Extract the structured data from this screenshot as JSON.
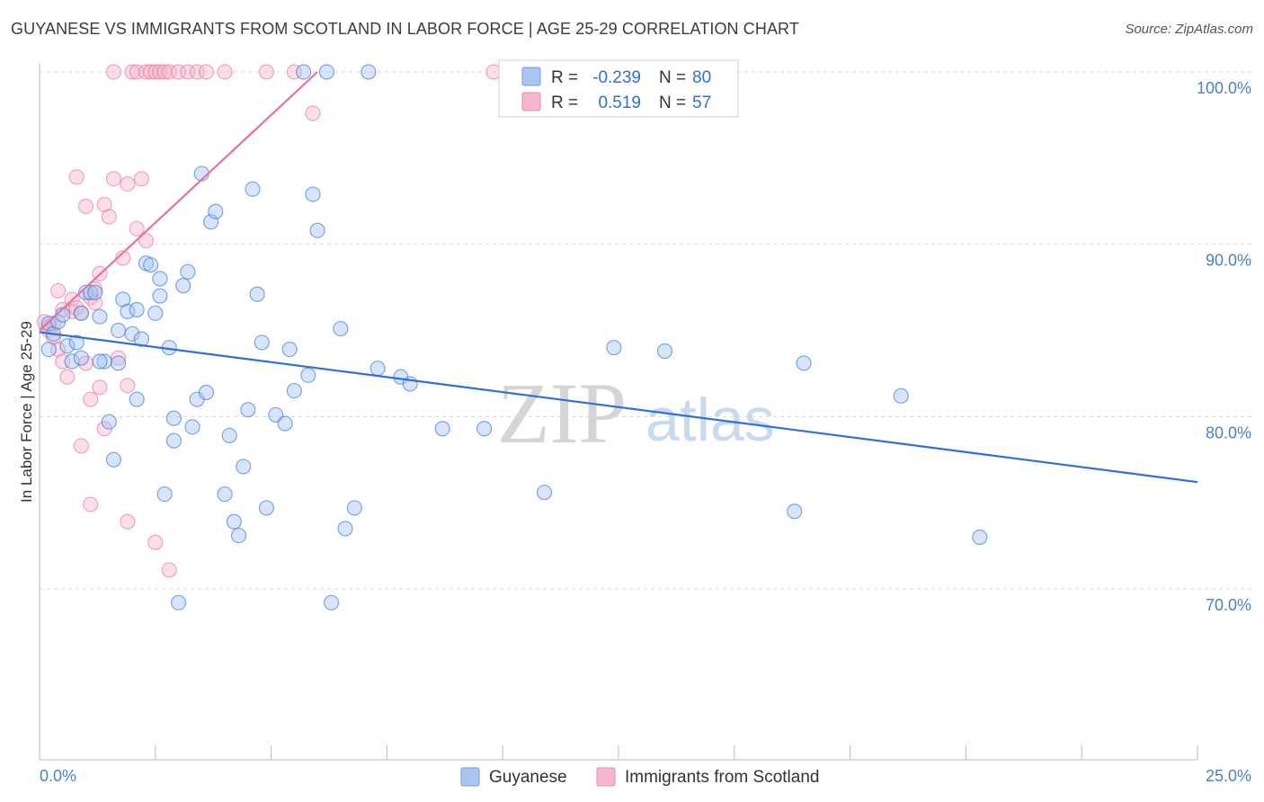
{
  "title": "GUYANESE VS IMMIGRANTS FROM SCOTLAND IN LABOR FORCE | AGE 25-29 CORRELATION CHART",
  "source": "Source: ZipAtlas.com",
  "watermark": {
    "zip": "ZIP",
    "atlas": "atlas"
  },
  "colors": {
    "blue": "#2f6fd6",
    "blue_fill": "#a9c6f0",
    "pink": "#e8729a",
    "pink_fill": "#f5b6cb",
    "grid": "#d9d9d9"
  },
  "stats": {
    "r_label": "R =",
    "n_label": "N =",
    "guyanese": {
      "r": "-0.239",
      "n": "80"
    },
    "scotland": {
      "r": "0.519",
      "n": "57"
    }
  },
  "chart_data": {
    "type": "scatter",
    "title": "GUYANESE VS IMMIGRANTS FROM SCOTLAND IN LABOR FORCE | AGE 25-29 CORRELATION CHART",
    "xlabel": "",
    "ylabel": "In Labor Force | Age 25-29",
    "xlim": [
      0,
      25
    ],
    "ylim": [
      60,
      100
    ],
    "x_tick_labels": [
      "0.0%",
      "25.0%"
    ],
    "y_ticks": [
      70,
      80,
      90,
      100
    ],
    "y_tick_labels": [
      "70.0%",
      "80.0%",
      "90.0%",
      "100.0%"
    ],
    "grid": true,
    "legend_placement": "bottom-center",
    "series": [
      {
        "name": "Guyanese",
        "color": "#2f6fd6",
        "trend": {
          "x": [
            0.0,
            25.0
          ],
          "y": [
            84.9,
            76.2
          ]
        },
        "points": [
          [
            0.2,
            85.4
          ],
          [
            0.3,
            84.8
          ],
          [
            0.2,
            83.9
          ],
          [
            0.4,
            85.5
          ],
          [
            0.5,
            85.9
          ],
          [
            0.6,
            84.1
          ],
          [
            0.7,
            83.2
          ],
          [
            0.8,
            84.3
          ],
          [
            0.9,
            83.4
          ],
          [
            1.0,
            87.2
          ],
          [
            1.1,
            87.2
          ],
          [
            1.2,
            87.2
          ],
          [
            1.3,
            85.8
          ],
          [
            1.4,
            83.2
          ],
          [
            1.5,
            79.7
          ],
          [
            1.6,
            77.5
          ],
          [
            1.7,
            85.0
          ],
          [
            1.7,
            83.1
          ],
          [
            1.8,
            86.8
          ],
          [
            1.9,
            86.1
          ],
          [
            2.0,
            84.8
          ],
          [
            2.1,
            86.2
          ],
          [
            2.1,
            81.0
          ],
          [
            2.2,
            84.5
          ],
          [
            2.3,
            88.9
          ],
          [
            2.4,
            88.8
          ],
          [
            2.5,
            86.0
          ],
          [
            2.6,
            87.0
          ],
          [
            2.6,
            88.0
          ],
          [
            2.7,
            75.5
          ],
          [
            2.8,
            84.0
          ],
          [
            2.9,
            78.6
          ],
          [
            3.0,
            69.2
          ],
          [
            3.1,
            87.6
          ],
          [
            3.2,
            88.4
          ],
          [
            3.3,
            79.4
          ],
          [
            3.4,
            81.0
          ],
          [
            3.5,
            94.1
          ],
          [
            3.6,
            81.4
          ],
          [
            3.7,
            91.3
          ],
          [
            3.8,
            91.9
          ],
          [
            4.0,
            75.5
          ],
          [
            4.1,
            78.9
          ],
          [
            4.2,
            73.9
          ],
          [
            4.3,
            73.1
          ],
          [
            4.4,
            77.1
          ],
          [
            4.5,
            80.4
          ],
          [
            4.6,
            93.2
          ],
          [
            4.7,
            87.1
          ],
          [
            4.8,
            84.3
          ],
          [
            4.9,
            74.7
          ],
          [
            5.1,
            80.1
          ],
          [
            5.3,
            79.6
          ],
          [
            5.4,
            83.9
          ],
          [
            5.5,
            81.5
          ],
          [
            5.7,
            100.0
          ],
          [
            5.8,
            82.4
          ],
          [
            5.9,
            92.9
          ],
          [
            6.0,
            90.8
          ],
          [
            6.2,
            100.0
          ],
          [
            6.3,
            69.2
          ],
          [
            6.5,
            85.1
          ],
          [
            6.6,
            73.5
          ],
          [
            6.8,
            74.7
          ],
          [
            7.1,
            100.0
          ],
          [
            7.3,
            82.8
          ],
          [
            7.8,
            82.3
          ],
          [
            8.0,
            81.9
          ],
          [
            8.7,
            79.3
          ],
          [
            9.6,
            79.3
          ],
          [
            10.9,
            75.6
          ],
          [
            12.4,
            84.0
          ],
          [
            13.5,
            83.8
          ],
          [
            16.3,
            74.5
          ],
          [
            16.5,
            83.1
          ],
          [
            18.6,
            81.2
          ],
          [
            20.3,
            73.0
          ],
          [
            2.9,
            79.9
          ],
          [
            0.9,
            86.0
          ],
          [
            1.3,
            83.2
          ]
        ]
      },
      {
        "name": "Immigrants from Scotland",
        "color": "#e8729a",
        "trend": {
          "x": [
            0.0,
            6.0
          ],
          "y": [
            85.0,
            100.0
          ]
        },
        "points": [
          [
            0.1,
            85.5
          ],
          [
            0.2,
            85.2
          ],
          [
            0.2,
            85.0
          ],
          [
            0.3,
            85.4
          ],
          [
            0.3,
            84.6
          ],
          [
            0.4,
            83.9
          ],
          [
            0.4,
            87.3
          ],
          [
            0.5,
            86.2
          ],
          [
            0.5,
            83.2
          ],
          [
            0.6,
            82.3
          ],
          [
            0.7,
            86.8
          ],
          [
            0.7,
            86.1
          ],
          [
            0.8,
            93.9
          ],
          [
            0.8,
            86.3
          ],
          [
            0.9,
            86.0
          ],
          [
            0.9,
            78.3
          ],
          [
            1.0,
            92.2
          ],
          [
            1.0,
            83.1
          ],
          [
            1.1,
            86.9
          ],
          [
            1.1,
            81.0
          ],
          [
            1.1,
            74.9
          ],
          [
            1.2,
            87.4
          ],
          [
            1.2,
            86.6
          ],
          [
            1.3,
            88.3
          ],
          [
            1.3,
            81.7
          ],
          [
            1.4,
            92.3
          ],
          [
            1.4,
            79.3
          ],
          [
            1.5,
            91.6
          ],
          [
            1.6,
            100.0
          ],
          [
            1.6,
            93.8
          ],
          [
            1.7,
            83.4
          ],
          [
            1.8,
            89.2
          ],
          [
            1.9,
            81.8
          ],
          [
            1.9,
            73.9
          ],
          [
            1.9,
            93.5
          ],
          [
            2.0,
            100.0
          ],
          [
            2.1,
            90.9
          ],
          [
            2.1,
            100.0
          ],
          [
            2.2,
            93.8
          ],
          [
            2.3,
            100.0
          ],
          [
            2.3,
            90.2
          ],
          [
            2.4,
            100.0
          ],
          [
            2.5,
            100.0
          ],
          [
            2.5,
            72.7
          ],
          [
            2.6,
            100.0
          ],
          [
            2.7,
            100.0
          ],
          [
            2.8,
            100.0
          ],
          [
            2.8,
            71.1
          ],
          [
            3.0,
            100.0
          ],
          [
            3.2,
            100.0
          ],
          [
            3.4,
            100.0
          ],
          [
            3.6,
            100.0
          ],
          [
            4.0,
            100.0
          ],
          [
            4.9,
            100.0
          ],
          [
            5.5,
            100.0
          ],
          [
            5.9,
            97.6
          ],
          [
            9.8,
            100.0
          ]
        ]
      }
    ]
  },
  "legend": {
    "items": [
      "Guyanese",
      "Immigrants from Scotland"
    ]
  }
}
